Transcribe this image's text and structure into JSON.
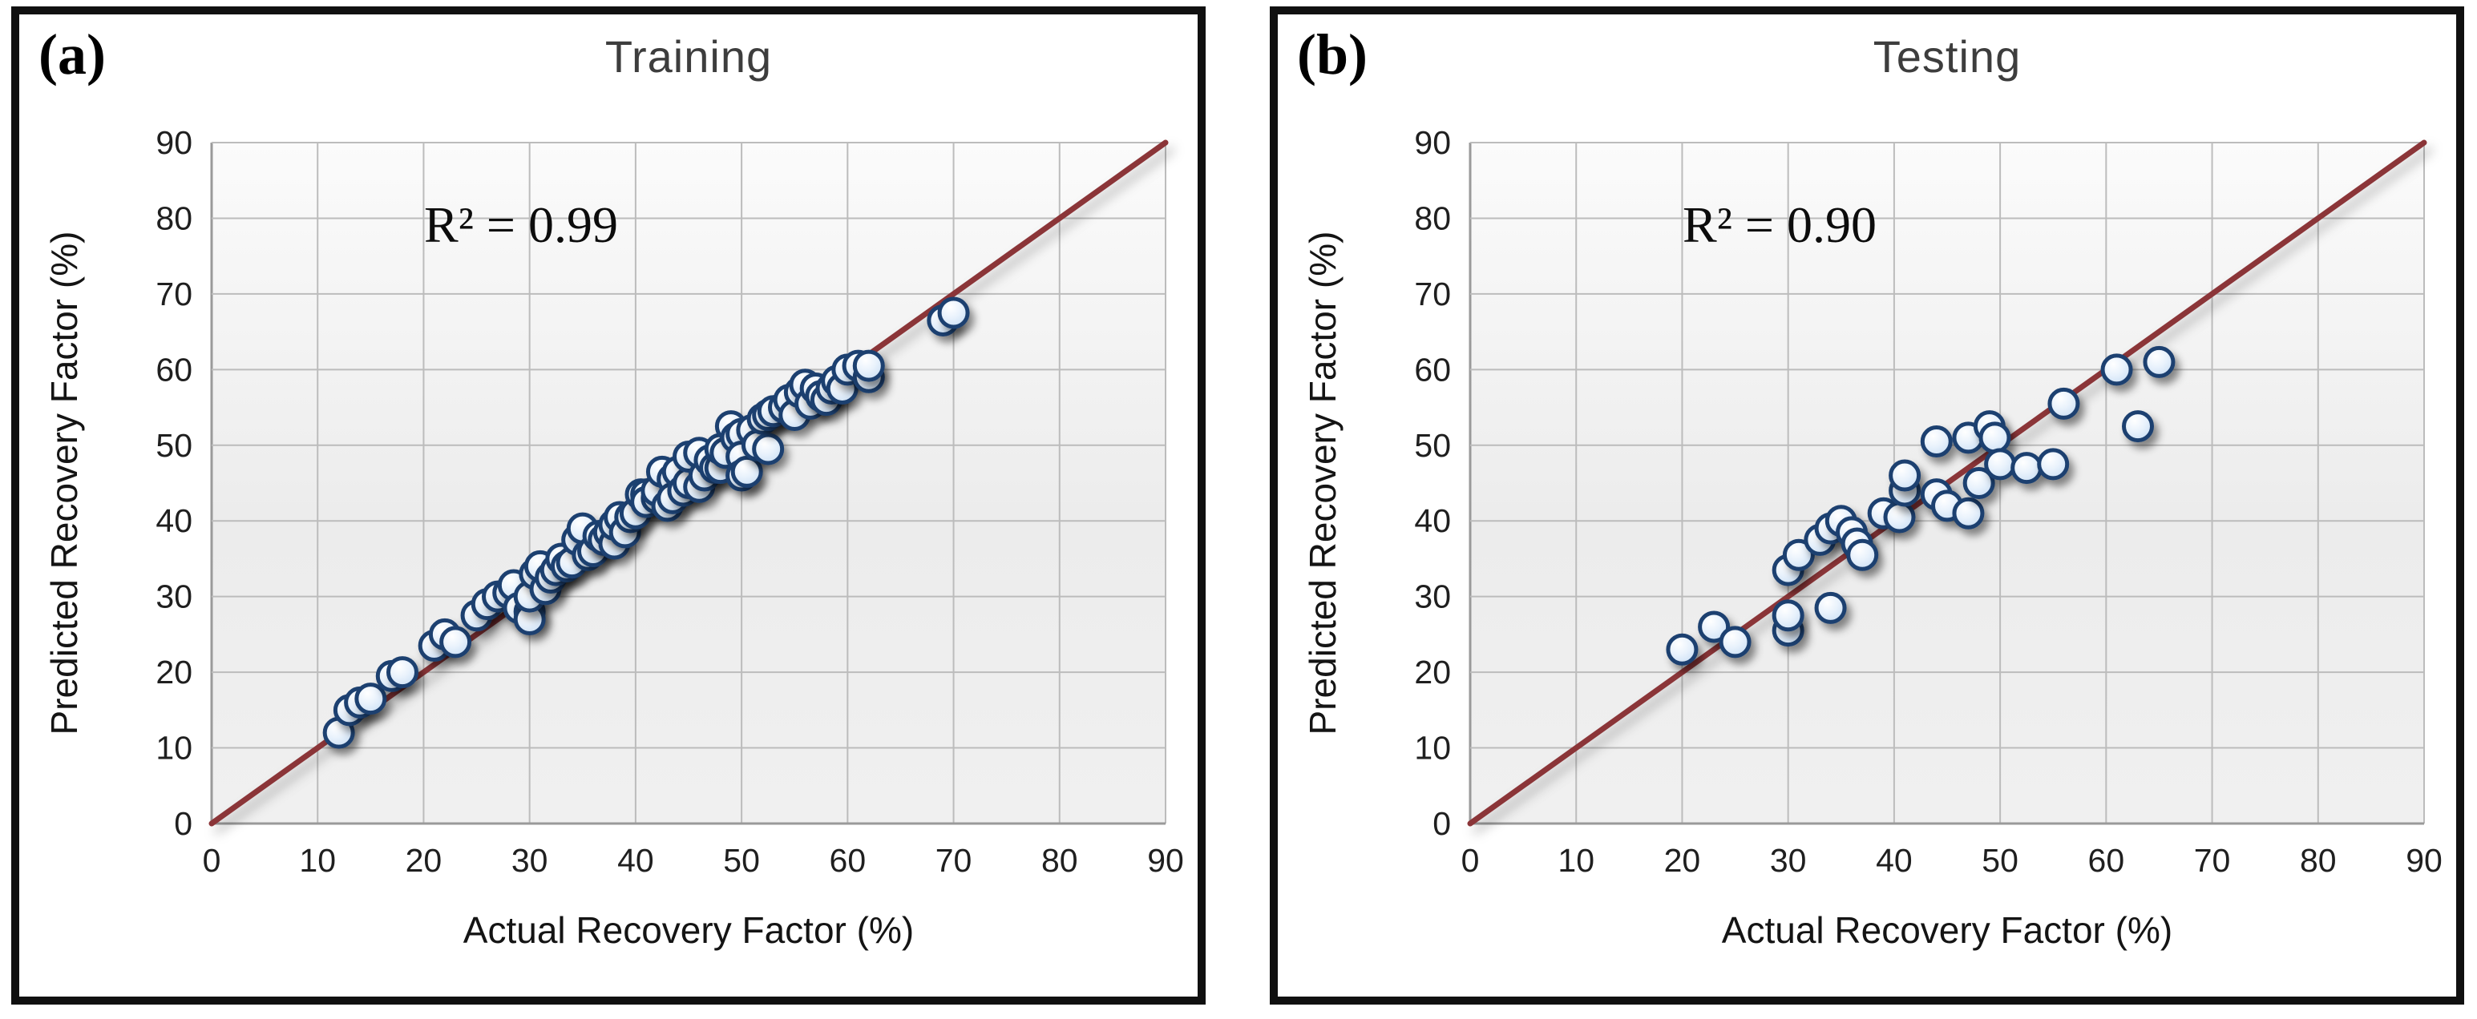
{
  "figure": {
    "background": "#ffffff",
    "frame_color": "#101010"
  },
  "colors": {
    "identity_line": "#8b3437",
    "marker_stroke": "#1d4070",
    "marker_fill": "#cfe2f5",
    "marker_highlight": "#ffffff",
    "grid": "#bcbcbc",
    "axis_edge": "#9a9a9a",
    "plot_bg_top": "#fbfbfb",
    "plot_bg_bottom": "#eaeaea",
    "tick_text": "#1f1f1f",
    "title_text": "#3d3d3d"
  },
  "chart_data": [
    {
      "type": "scatter",
      "panel_tag": "(a)",
      "title": "Training",
      "annotation": "R² = 0.99",
      "xlabel": "Actual Recovery Factor (%)",
      "ylabel": "Predicted Recovery Factor (%)",
      "xlim": [
        0,
        90
      ],
      "ylim": [
        0,
        90
      ],
      "xticks": [
        0,
        10,
        20,
        30,
        40,
        50,
        60,
        70,
        80,
        90
      ],
      "yticks": [
        0,
        10,
        20,
        30,
        40,
        50,
        60,
        70,
        80,
        90
      ],
      "grid": true,
      "legend": "none",
      "identity_line": {
        "from": [
          0,
          0
        ],
        "to": [
          90,
          90
        ]
      },
      "series": [
        {
          "marker": "circle",
          "points": [
            [
              12,
              12
            ],
            [
              13,
              15
            ],
            [
              14,
              16
            ],
            [
              15,
              16.5
            ],
            [
              17,
              19.5
            ],
            [
              18,
              20
            ],
            [
              21,
              23.5
            ],
            [
              22,
              25
            ],
            [
              23,
              24
            ],
            [
              25,
              27.5
            ],
            [
              26,
              29
            ],
            [
              27,
              30
            ],
            [
              28,
              30.5
            ],
            [
              28.5,
              31.5
            ],
            [
              29,
              28.5
            ],
            [
              30,
              28
            ],
            [
              30,
              27
            ],
            [
              30,
              30
            ],
            [
              30.5,
              33
            ],
            [
              31,
              34
            ],
            [
              31.5,
              31
            ],
            [
              32,
              32.5
            ],
            [
              32.5,
              33.5
            ],
            [
              33,
              35
            ],
            [
              33.5,
              34
            ],
            [
              34,
              34.5
            ],
            [
              34.5,
              37.5
            ],
            [
              35,
              39
            ],
            [
              35.5,
              35.5
            ],
            [
              36,
              36
            ],
            [
              36.5,
              38
            ],
            [
              37,
              37.5
            ],
            [
              37.5,
              38.5
            ],
            [
              38,
              37
            ],
            [
              38,
              39.5
            ],
            [
              38.5,
              40.5
            ],
            [
              39,
              38.5
            ],
            [
              39.5,
              40.5
            ],
            [
              40,
              41
            ],
            [
              40.5,
              43.5
            ],
            [
              41,
              43.5
            ],
            [
              41,
              42.5
            ],
            [
              42,
              43
            ],
            [
              42,
              44
            ],
            [
              42.5,
              46.5
            ],
            [
              43,
              42
            ],
            [
              43.5,
              45.5
            ],
            [
              43.5,
              43
            ],
            [
              44,
              46.5
            ],
            [
              44.5,
              44
            ],
            [
              45,
              45
            ],
            [
              45,
              48.5
            ],
            [
              46,
              49
            ],
            [
              46,
              44.5
            ],
            [
              46.5,
              46
            ],
            [
              47,
              48
            ],
            [
              47.5,
              47
            ],
            [
              48,
              47
            ],
            [
              48,
              49.5
            ],
            [
              48.5,
              49
            ],
            [
              49,
              52.5
            ],
            [
              49.5,
              51
            ],
            [
              50,
              51.5
            ],
            [
              50,
              48.5
            ],
            [
              50,
              46
            ],
            [
              50.5,
              46.5
            ],
            [
              51,
              52
            ],
            [
              51.5,
              50
            ],
            [
              52,
              53.5
            ],
            [
              52.5,
              49.5
            ],
            [
              52.5,
              54
            ],
            [
              53,
              54.5
            ],
            [
              54,
              55
            ],
            [
              54.5,
              56
            ],
            [
              55,
              54
            ],
            [
              55.5,
              57
            ],
            [
              56,
              58
            ],
            [
              56.5,
              55.5
            ],
            [
              57,
              57.5
            ],
            [
              57.5,
              56.5
            ],
            [
              58,
              56
            ],
            [
              58.5,
              57.5
            ],
            [
              59,
              58.5
            ],
            [
              59.5,
              57.5
            ],
            [
              60,
              60
            ],
            [
              61,
              60.5
            ],
            [
              62,
              59
            ],
            [
              62,
              60.5
            ],
            [
              69,
              66.5
            ],
            [
              70,
              67.5
            ]
          ]
        }
      ]
    },
    {
      "type": "scatter",
      "panel_tag": "(b)",
      "title": "Testing",
      "annotation": "R² = 0.90",
      "xlabel": "Actual Recovery Factor (%)",
      "ylabel": "Predicted Recovery Factor (%)",
      "xlim": [
        0,
        90
      ],
      "ylim": [
        0,
        90
      ],
      "xticks": [
        0,
        10,
        20,
        30,
        40,
        50,
        60,
        70,
        80,
        90
      ],
      "yticks": [
        0,
        10,
        20,
        30,
        40,
        50,
        60,
        70,
        80,
        90
      ],
      "grid": true,
      "legend": "none",
      "identity_line": {
        "from": [
          0,
          0
        ],
        "to": [
          90,
          90
        ]
      },
      "series": [
        {
          "marker": "circle",
          "points": [
            [
              20,
              23
            ],
            [
              23,
              26
            ],
            [
              25,
              24
            ],
            [
              30,
              25.5
            ],
            [
              30,
              27.5
            ],
            [
              34,
              28.5
            ],
            [
              30,
              33.5
            ],
            [
              31,
              35.5
            ],
            [
              33,
              37.5
            ],
            [
              34,
              39
            ],
            [
              35,
              40
            ],
            [
              36,
              38.5
            ],
            [
              36.5,
              37
            ],
            [
              37,
              35.5
            ],
            [
              39,
              41
            ],
            [
              40.5,
              40.5
            ],
            [
              41,
              44
            ],
            [
              41,
              46
            ],
            [
              44,
              43.5
            ],
            [
              45,
              42
            ],
            [
              47,
              41
            ],
            [
              44,
              50.5
            ],
            [
              47,
              51
            ],
            [
              48,
              45
            ],
            [
              49,
              52.5
            ],
            [
              49.5,
              51
            ],
            [
              50,
              47.5
            ],
            [
              52.5,
              47
            ],
            [
              55,
              47.5
            ],
            [
              56,
              55.5
            ],
            [
              61,
              60
            ],
            [
              63,
              52.5
            ],
            [
              65,
              61
            ]
          ]
        }
      ]
    }
  ]
}
